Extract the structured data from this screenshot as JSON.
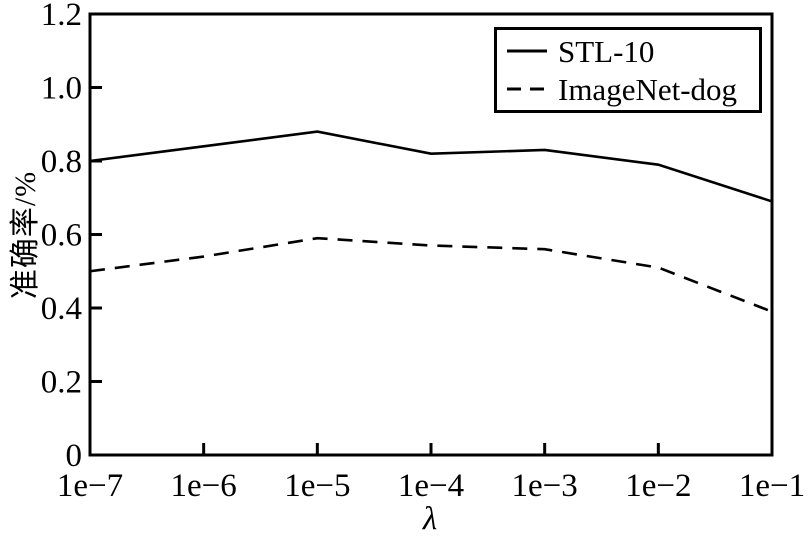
{
  "chart_data": {
    "type": "line",
    "title": "",
    "xlabel": "λ",
    "ylabel": "准确率/%",
    "categories": [
      "1e−7",
      "1e−6",
      "1e−5",
      "1e−4",
      "1e−3",
      "1e−2",
      "1e−1"
    ],
    "yticks": [
      "0",
      "0.2",
      "0.4",
      "0.6",
      "0.8",
      "1.0",
      "1.2"
    ],
    "ylim": [
      0,
      1.2
    ],
    "grid": false,
    "legend_position": "top-right",
    "line_color": "#000000",
    "background_color": "#ffffff",
    "series": [
      {
        "name": "STL-10",
        "style": "solid",
        "values": [
          0.8,
          0.84,
          0.88,
          0.82,
          0.83,
          0.79,
          0.69
        ]
      },
      {
        "name": "ImageNet-dog",
        "style": "dashed",
        "values": [
          0.5,
          0.54,
          0.59,
          0.57,
          0.56,
          0.51,
          0.39
        ]
      }
    ]
  }
}
